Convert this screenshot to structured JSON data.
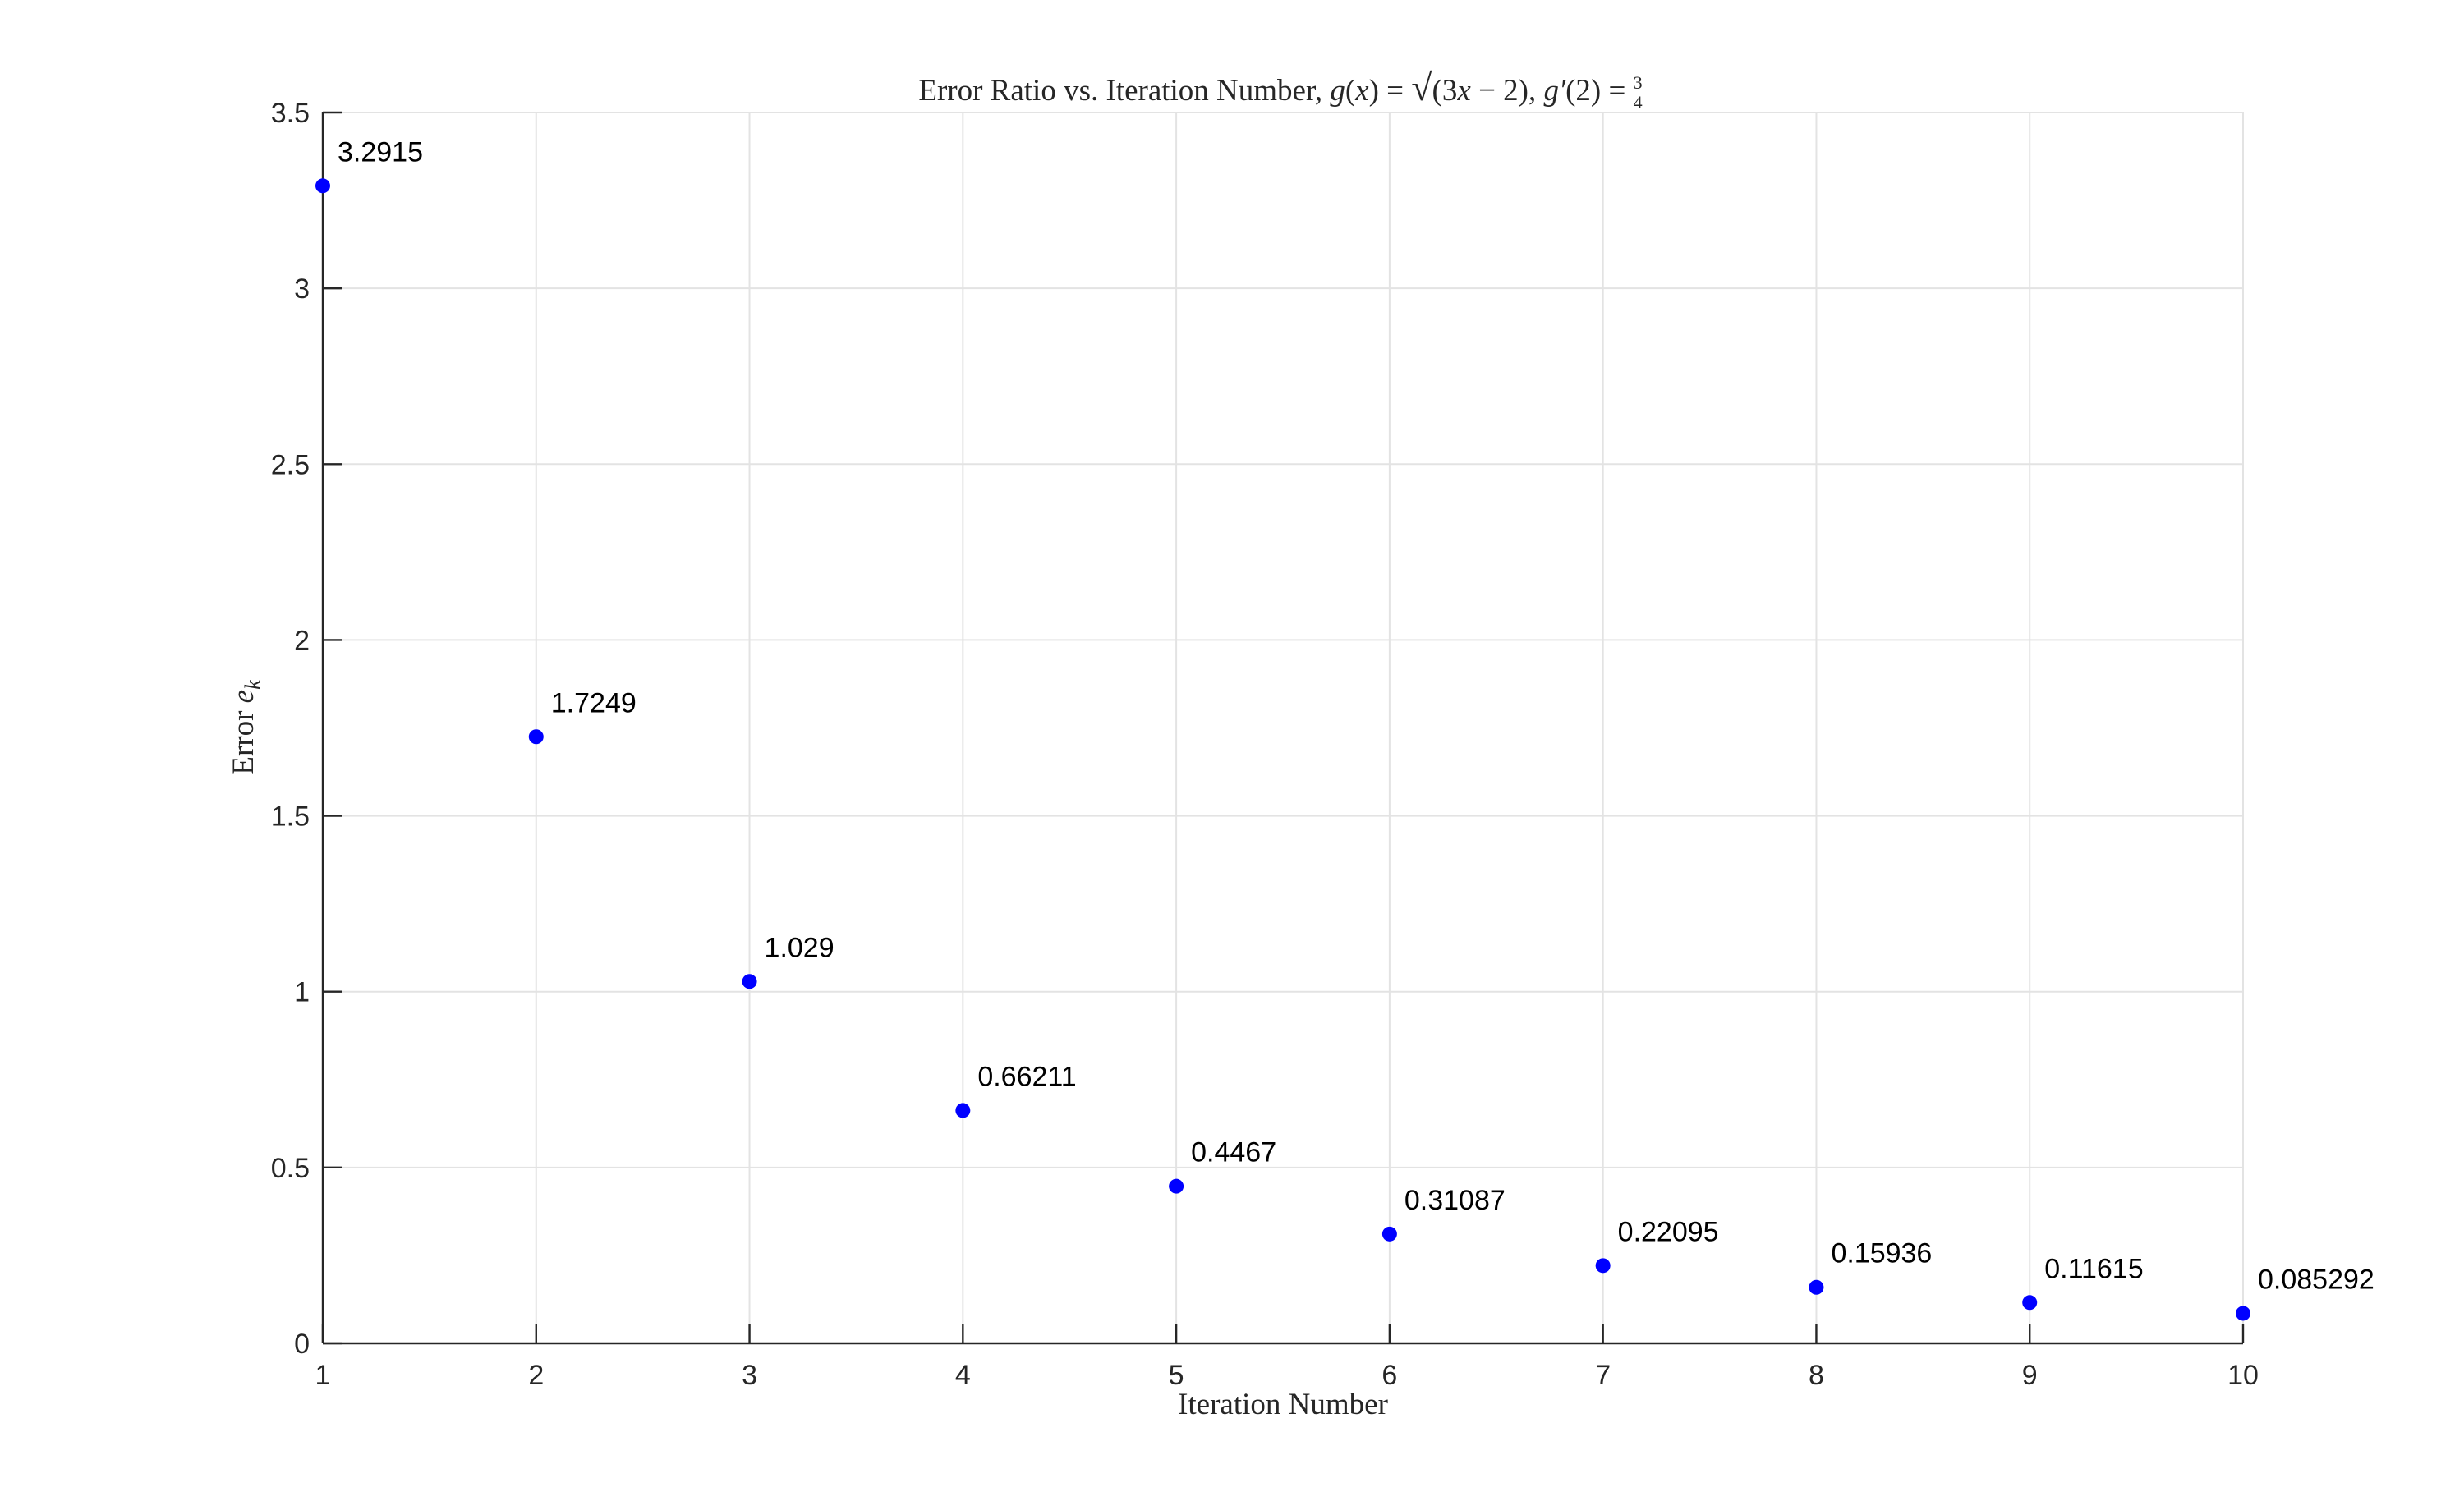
{
  "chart_data": {
    "type": "scatter",
    "title": {
      "prefix": "Error Ratio vs. Iteration Number, ",
      "g": "g",
      "x_var": "x",
      "eq": " = ",
      "sqrt": "√",
      "inner": "(3",
      "inner_x": "x",
      "inner_rest": " − 2), ",
      "gprime": "g′",
      "arg": "(2) = ",
      "frac_num": "3",
      "frac_den": "4"
    },
    "xlabel": "Iteration Number",
    "ylabel": {
      "text": "Error ",
      "sym": "e",
      "sub": "k"
    },
    "xlim": [
      1,
      10
    ],
    "ylim": [
      0,
      3.5
    ],
    "x_ticks": [
      "1",
      "2",
      "3",
      "4",
      "5",
      "6",
      "7",
      "8",
      "9",
      "10"
    ],
    "y_ticks": [
      "0",
      "0.5",
      "1",
      "1.5",
      "2",
      "2.5",
      "3",
      "3.5"
    ],
    "grid": true,
    "marker_color": "#0000ff",
    "series": [
      {
        "x": [
          1,
          2,
          3,
          4,
          5,
          6,
          7,
          8,
          9,
          10
        ],
        "y": [
          3.2915,
          1.7249,
          1.029,
          0.66211,
          0.4467,
          0.31087,
          0.22095,
          0.15936,
          0.11615,
          0.085292
        ],
        "labels": [
          "3.2915",
          "1.7249",
          "1.029",
          "0.66211",
          "0.4467",
          "0.31087",
          "0.22095",
          "0.15936",
          "0.11615",
          "0.085292"
        ]
      }
    ]
  }
}
